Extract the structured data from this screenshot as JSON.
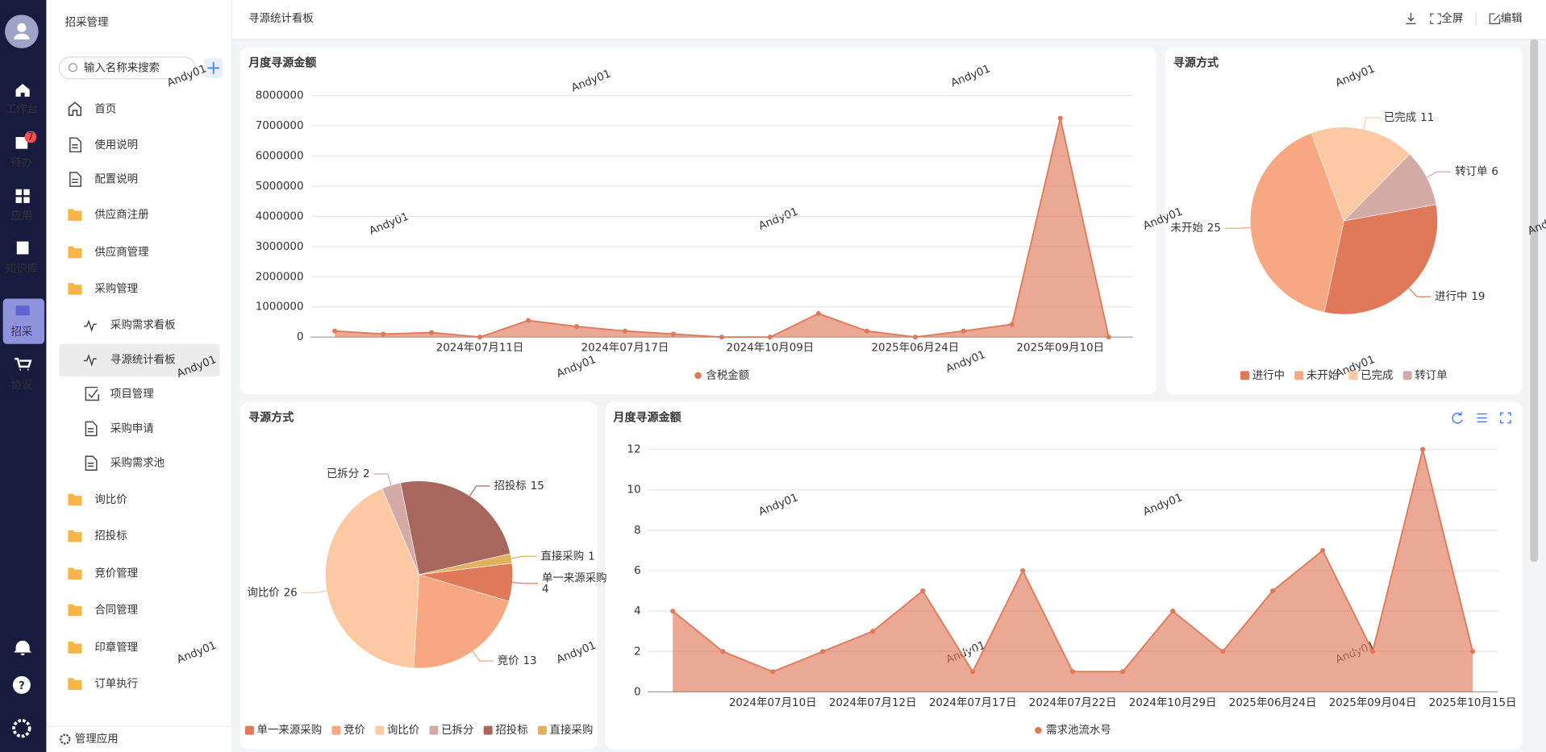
{
  "rail": {
    "items": [
      "工作台",
      "待办",
      "应用",
      "知识库",
      "招采",
      "协议"
    ],
    "todo_badge": 7
  },
  "sidebar": {
    "title": "招采管理",
    "search_placeholder": "输入名称来搜索",
    "menu": [
      "首页",
      "使用说明",
      "配置说明",
      "供应商注册",
      "供应商管理",
      "采购管理",
      "询比价",
      "招投标",
      "竞价管理",
      "合同管理",
      "印章管理",
      "订单执行"
    ],
    "submenu": [
      "采购需求看板",
      "寻源统计看板",
      "项目管理",
      "采购申请",
      "采购需求池"
    ],
    "footer": "管理应用"
  },
  "header": {
    "title": "寻源统计看板",
    "actions": [
      "全屏",
      "编辑"
    ]
  },
  "watermark": "Andy01",
  "chart_data": [
    {
      "type": "line",
      "title": "月度寻源金额",
      "categories": [
        null,
        null,
        null,
        "2024年07月11日",
        null,
        null,
        "2024年07月17日",
        null,
        null,
        "2024年10月09日",
        null,
        null,
        "2025年06月24日",
        null,
        null,
        "2025年09月10日",
        null
      ],
      "series": [
        {
          "name": "含税金额",
          "color": "#e0795a",
          "values": [
            200000,
            100000,
            150000,
            0,
            550000,
            350000,
            200000,
            100000,
            0,
            0,
            780000,
            200000,
            0,
            200000,
            420000,
            7250000,
            0
          ]
        }
      ],
      "ylim": [
        0,
        8000000
      ],
      "yticks": [
        0,
        1000000,
        2000000,
        3000000,
        4000000,
        5000000,
        6000000,
        7000000,
        8000000
      ],
      "grid": true,
      "area": true,
      "legend": "bottom"
    },
    {
      "type": "pie",
      "title": "寻源方式",
      "categories": [
        "进行中",
        "未开始",
        "已完成",
        "转订单"
      ],
      "values": [
        19,
        25,
        11,
        6
      ],
      "colors": [
        "#e0795a",
        "#f7a882",
        "#fdc9a3",
        "#d4aaa6"
      ],
      "legend": "bottom"
    },
    {
      "type": "pie",
      "title": "寻源方式",
      "categories": [
        "单一来源采购",
        "竞价",
        "询比价",
        "已拆分",
        "招投标",
        "直接采购"
      ],
      "values": [
        4,
        13,
        26,
        2,
        15,
        1
      ],
      "colors": [
        "#e0795a",
        "#f7a882",
        "#fdc9a3",
        "#d4aaa6",
        "#a9665d",
        "#e3b15e"
      ],
      "legend": "bottom"
    },
    {
      "type": "line",
      "title": "月度寻源金额",
      "categories": [
        null,
        null,
        "2024年07月10日",
        null,
        "2024年07月12日",
        null,
        "2024年07月17日",
        null,
        "2024年07月22日",
        null,
        "2024年10月29日",
        null,
        "2025年06月24日",
        null,
        "2025年09月04日",
        null,
        "2025年10月15日"
      ],
      "series": [
        {
          "name": "需求池流水号",
          "color": "#e0795a",
          "values": [
            4,
            2,
            1,
            2,
            3,
            5,
            1,
            6,
            1,
            1,
            4,
            2,
            5,
            7,
            2,
            12,
            2
          ]
        }
      ],
      "ylim": [
        0,
        12
      ],
      "yticks": [
        0,
        2,
        4,
        6,
        8,
        10,
        12
      ],
      "grid": true,
      "area": true,
      "legend": "bottom"
    }
  ]
}
